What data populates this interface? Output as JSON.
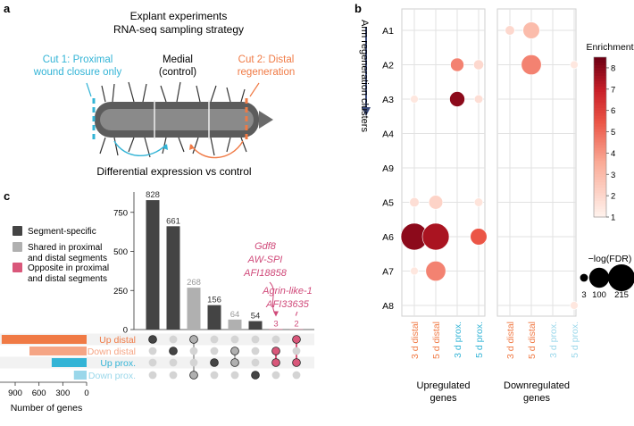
{
  "panels": {
    "a": {
      "label": "a",
      "title_line1": "Explant experiments",
      "title_line2": "RNA-seq sampling strategy",
      "cut1_line1": "Cut 1: Proximal",
      "cut1_line2": "wound closure only",
      "medial_line1": "Medial",
      "medial_line2": "(control)",
      "cut2_line1": "Cut 2: Distal",
      "cut2_line2": "regeneration",
      "footer": "Differential expression vs control"
    },
    "b": {
      "label": "b"
    },
    "c": {
      "label": "c"
    }
  },
  "colors": {
    "distal": "#f07a45",
    "proximal": "#33b4d6",
    "proximal_light": "#9ad7ea",
    "segment_specific": "#444444",
    "shared": "#b0b0b0",
    "opposite": "#d9577a",
    "opposite_text": "#d04a7a",
    "arrow_blue": "#3a4a7a"
  },
  "chart_data": [
    {
      "type": "scatter",
      "subtype": "dot-plot",
      "panel": "b",
      "ylabel": "Arm regeneration clusters",
      "clusters": [
        "A1",
        "A2",
        "A3",
        "A4",
        "A9",
        "A5",
        "A6",
        "A7",
        "A8"
      ],
      "groups": [
        {
          "name": "Upregulated genes",
          "conditions": [
            "3 d distal",
            "5 d distal",
            "3 d prox.",
            "5 d prox."
          ]
        },
        {
          "name": "Downregulated genes",
          "conditions": [
            "3 d distal",
            "5 d distal",
            "3 d prox.",
            "5 d prox."
          ]
        }
      ],
      "condition_colors": [
        "#f07a45",
        "#f07a45",
        "#33b4d6",
        "#33b4d6"
      ],
      "condition_colors_down": [
        "#f07a45",
        "#f07a45",
        "#9ad7ea",
        "#9ad7ea"
      ],
      "points": [
        {
          "group": 0,
          "cond": 2,
          "cluster": "A2",
          "enrichment": 4.5,
          "neglogfdr": 30
        },
        {
          "group": 0,
          "cond": 3,
          "cluster": "A2",
          "enrichment": 2.0,
          "neglogfdr": 10
        },
        {
          "group": 0,
          "cond": 0,
          "cluster": "A3",
          "enrichment": 1.5,
          "neglogfdr": 3
        },
        {
          "group": 0,
          "cond": 2,
          "cluster": "A3",
          "enrichment": 8.0,
          "neglogfdr": 45
        },
        {
          "group": 0,
          "cond": 3,
          "cluster": "A3",
          "enrichment": 1.8,
          "neglogfdr": 5
        },
        {
          "group": 0,
          "cond": 0,
          "cluster": "A5",
          "enrichment": 1.8,
          "neglogfdr": 8
        },
        {
          "group": 0,
          "cond": 1,
          "cluster": "A5",
          "enrichment": 2.2,
          "neglogfdr": 35
        },
        {
          "group": 0,
          "cond": 3,
          "cluster": "A5",
          "enrichment": 1.6,
          "neglogfdr": 5
        },
        {
          "group": 0,
          "cond": 0,
          "cluster": "A6",
          "enrichment": 8.0,
          "neglogfdr": 215
        },
        {
          "group": 0,
          "cond": 1,
          "cluster": "A6",
          "enrichment": 7.5,
          "neglogfdr": 215
        },
        {
          "group": 0,
          "cond": 3,
          "cluster": "A6",
          "enrichment": 5.5,
          "neglogfdr": 60
        },
        {
          "group": 0,
          "cond": 0,
          "cluster": "A7",
          "enrichment": 1.5,
          "neglogfdr": 3
        },
        {
          "group": 0,
          "cond": 1,
          "cluster": "A7",
          "enrichment": 4.5,
          "neglogfdr": 100
        },
        {
          "group": 1,
          "cond": 0,
          "cluster": "A1",
          "enrichment": 2.0,
          "neglogfdr": 8
        },
        {
          "group": 1,
          "cond": 1,
          "cluster": "A1",
          "enrichment": 3.0,
          "neglogfdr": 60
        },
        {
          "group": 1,
          "cond": 1,
          "cluster": "A2",
          "enrichment": 4.5,
          "neglogfdr": 100
        },
        {
          "group": 1,
          "cond": 3,
          "cluster": "A2",
          "enrichment": 1.5,
          "neglogfdr": 3
        },
        {
          "group": 1,
          "cond": 3,
          "cluster": "A8",
          "enrichment": 1.5,
          "neglogfdr": 3
        }
      ],
      "colorbar": {
        "title": "Enrichment",
        "min": 1,
        "max": 8.5,
        "ticks": [
          1,
          2,
          3,
          4,
          5,
          6,
          7,
          8
        ]
      },
      "size_legend": {
        "title": "−log(FDR)",
        "values": [
          3,
          100,
          215
        ]
      }
    },
    {
      "type": "bar",
      "subtype": "upset",
      "panel": "c",
      "ylabel": "Number of genes",
      "yticks": [
        0,
        250,
        500,
        750
      ],
      "ylim": [
        0,
        880
      ],
      "values": [
        828,
        661,
        268,
        156,
        64,
        54,
        3,
        2
      ],
      "bar_class": [
        "segment",
        "segment",
        "shared",
        "segment",
        "shared",
        "segment",
        "opposite",
        "opposite"
      ],
      "legend": [
        {
          "key": "segment",
          "label_line1": "Segment-specific",
          "label_line2": ""
        },
        {
          "key": "shared",
          "label_line1": "Shared in proximal",
          "label_line2": "and distal segments"
        },
        {
          "key": "opposite",
          "label_line1": "Opposite in proximal",
          "label_line2": "and distal segments"
        }
      ],
      "sets": [
        {
          "name": "Up distal",
          "size": 1070
        },
        {
          "name": "Down distal",
          "size": 720
        },
        {
          "name": "Up prox.",
          "size": 440
        },
        {
          "name": "Down prox.",
          "size": 160
        }
      ],
      "set_colors": [
        "#f07a45",
        "#f5a585",
        "#33b4d6",
        "#9ad7ea"
      ],
      "set_xticks": [
        900,
        600,
        300,
        0
      ],
      "set_xlabel": "Number of genes",
      "membership": [
        [
          0
        ],
        [
          1
        ],
        [
          0,
          3
        ],
        [
          2
        ],
        [
          1,
          2
        ],
        [
          3
        ],
        [
          1,
          2
        ],
        [
          0,
          2
        ]
      ],
      "annotations": [
        {
          "lines": [
            "Gdf8",
            "AW-SPI",
            "AFI18858"
          ],
          "bar": 6
        },
        {
          "lines": [
            "Agrin-like-1",
            "AFI33635"
          ],
          "bar": 7
        }
      ]
    }
  ]
}
